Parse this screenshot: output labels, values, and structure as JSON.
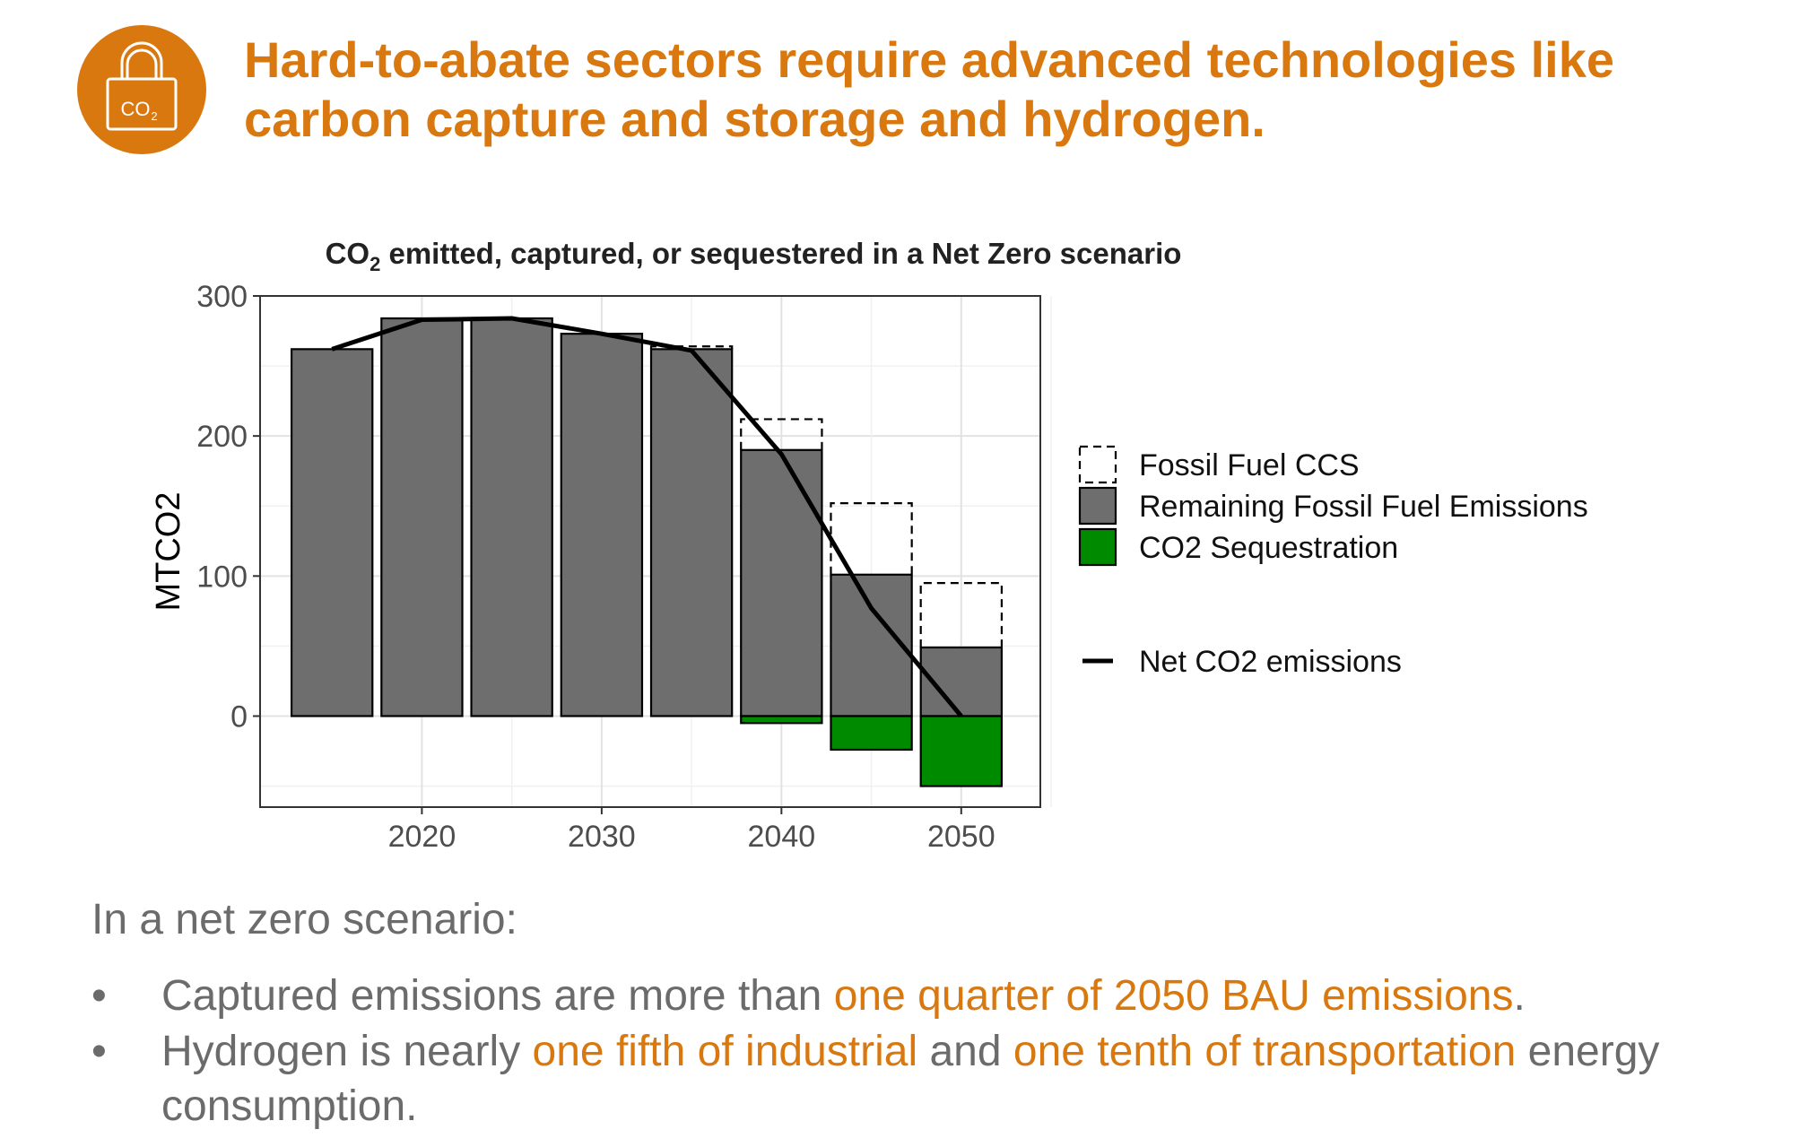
{
  "header": {
    "title_line1": "Hard-to-abate sectors require advanced technologies like",
    "title_line2": "carbon capture and storage and hydrogen.",
    "badge_text": "CO",
    "badge_subscript": "2",
    "badge_icon": "lock-co2-icon"
  },
  "chart_data": {
    "type": "bar",
    "title_prefix": "CO",
    "title_subscript": "2",
    "title_suffix": " emitted, captured, or sequestered in a Net Zero scenario",
    "xlabel": "",
    "ylabel": "MTCO2",
    "x": [
      2015,
      2020,
      2025,
      2030,
      2035,
      2040,
      2045,
      2050
    ],
    "xlim": [
      2011,
      2054.4
    ],
    "ylim": [
      -65,
      300
    ],
    "x_ticks": [
      "2020",
      "2030",
      "2040",
      "2050"
    ],
    "y_ticks": [
      "300",
      "200",
      "100",
      "0"
    ],
    "grid": true,
    "legend_position": "right",
    "stacked": true,
    "series": [
      {
        "name": "Fossil Fuel CCS",
        "style": "dashed-outline",
        "values": [
          0,
          0,
          0,
          0,
          2,
          22,
          51,
          46
        ]
      },
      {
        "name": "Remaining Fossil Fuel Emissions",
        "color": "#6e6e6e",
        "values": [
          262,
          284,
          284,
          273,
          262,
          190,
          101,
          49
        ]
      },
      {
        "name": "CO2 Sequestration",
        "color": "#008a00",
        "values": [
          0,
          0,
          0,
          0,
          0,
          -5,
          -24,
          -50
        ]
      },
      {
        "name": "Net CO2 emissions",
        "type": "line",
        "color": "#000000",
        "values": [
          262,
          283,
          284,
          273,
          261,
          187,
          77,
          0
        ]
      }
    ]
  },
  "body": {
    "intro": "In a net zero scenario:",
    "bullet_glyph": "•",
    "bullet1": {
      "part1": "Captured emissions are more than ",
      "highlight1": "one quarter of 2050 BAU emissions",
      "part2": "."
    },
    "bullet2": {
      "part1": "Hydrogen is nearly ",
      "highlight1": "one fifth of industrial",
      "part2": " and ",
      "highlight2": "one tenth of transportation",
      "part3": " energy",
      "line2": "consumption."
    }
  },
  "colors": {
    "accent": "#D9780F",
    "bar_gray": "#6e6e6e",
    "sequestration_green": "#008a00",
    "body_text": "#6b6b6b"
  }
}
